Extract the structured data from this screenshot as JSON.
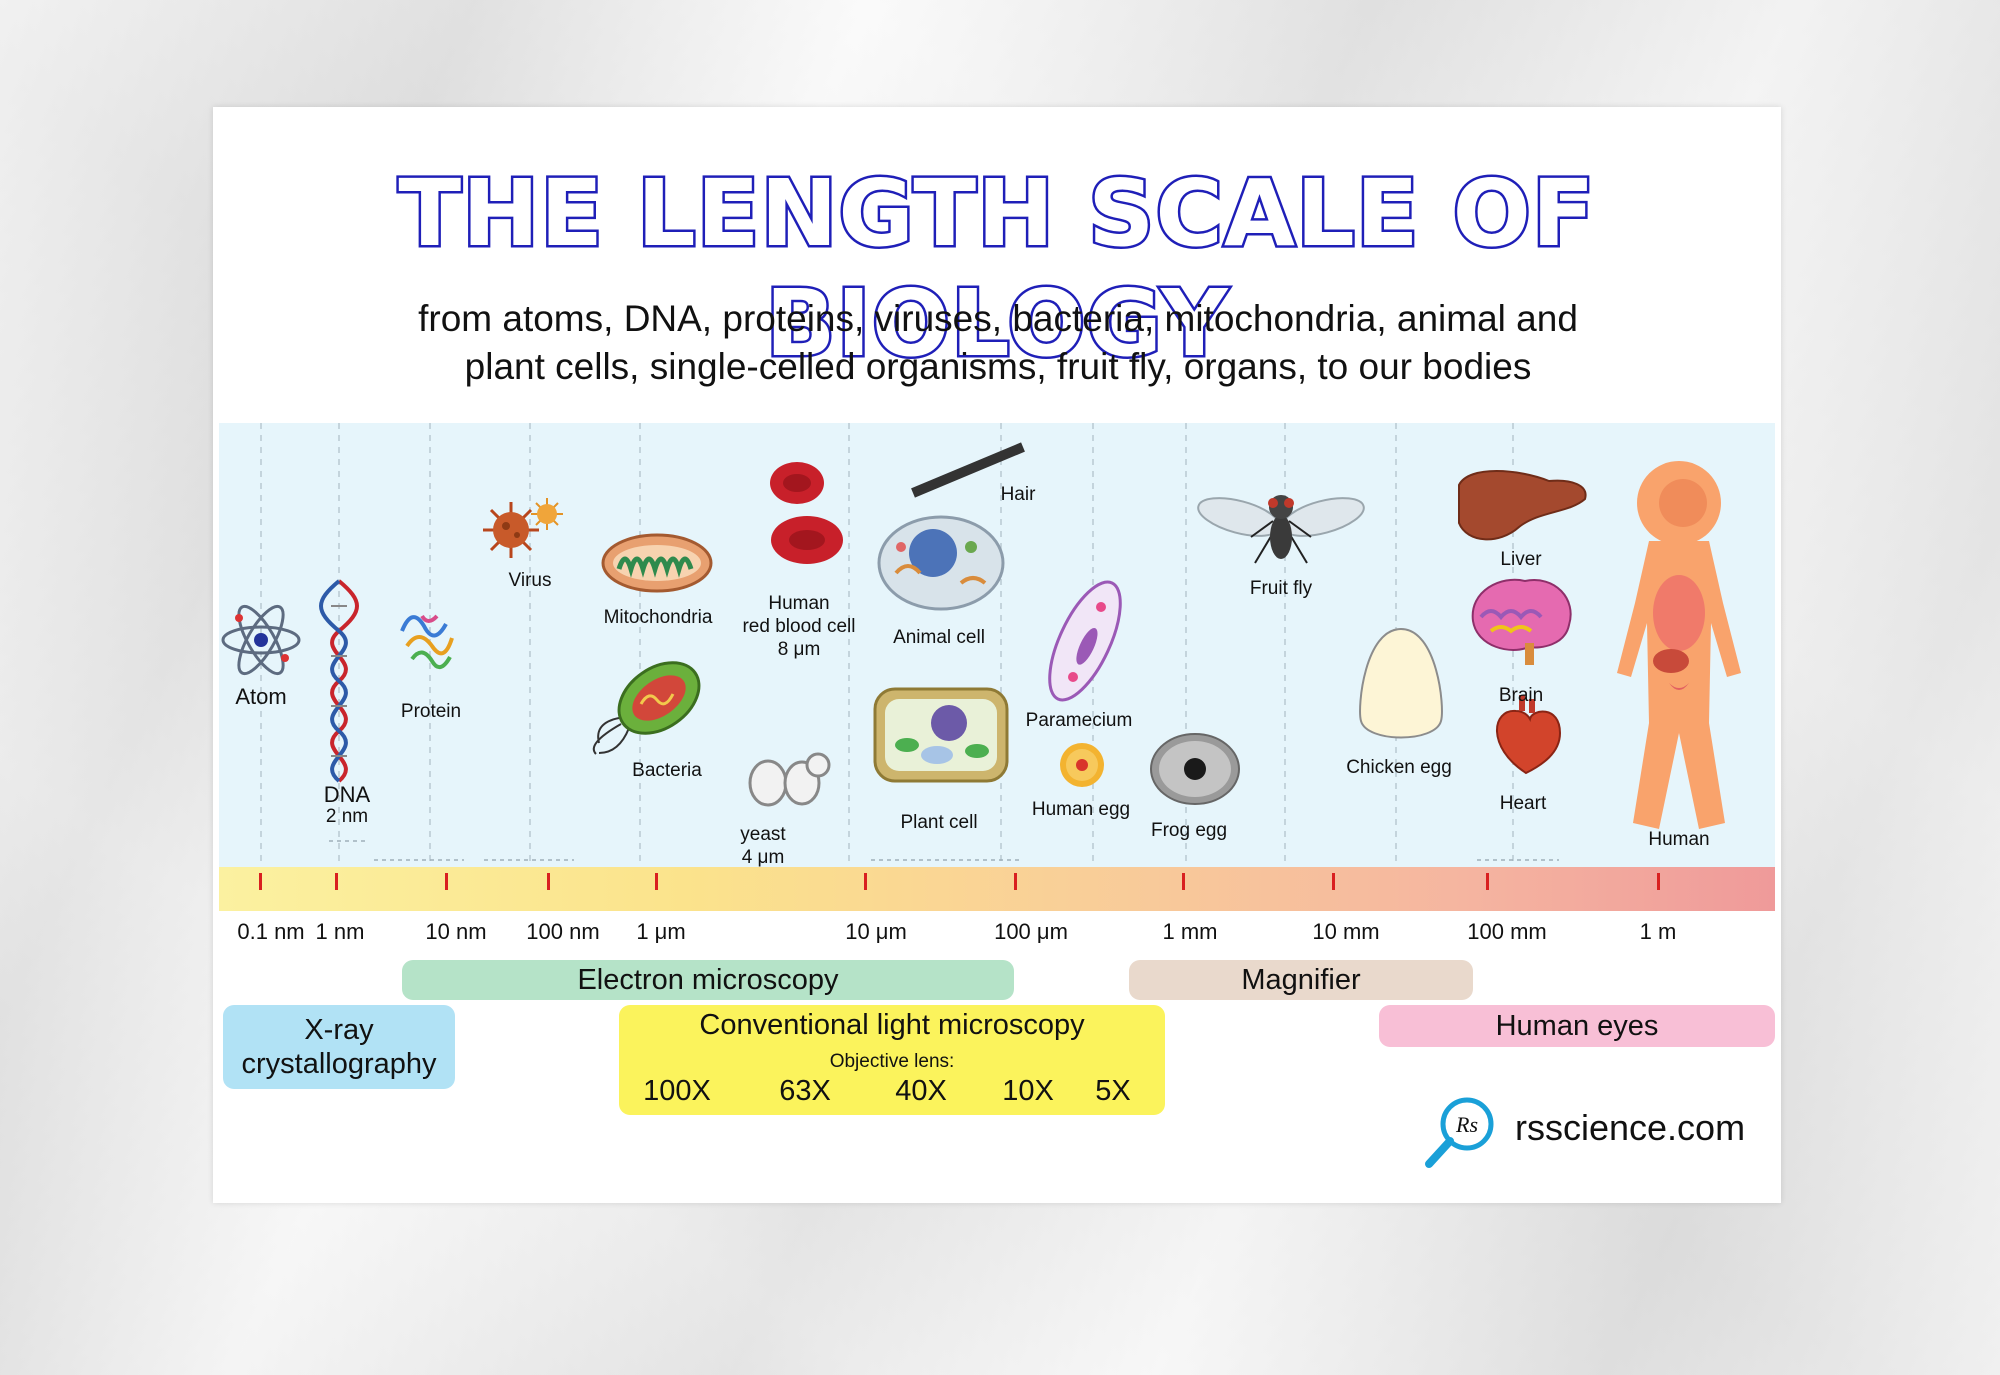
{
  "title": "THE LENGTH SCALE OF BIOLOGY",
  "subtitle_line1": "from atoms, DNA, proteins, viruses, bacteria, mitochondria, animal and",
  "subtitle_line2": "plant cells, single-celled organisms, fruit fly, organs, to our bodies",
  "organisms": {
    "atom": "Atom",
    "dna": "DNA",
    "dna_size": "2 nm",
    "protein": "Protein",
    "virus": "Virus",
    "mitochondria": "Mitochondria",
    "bacteria": "Bacteria",
    "rbc_line1": "Human",
    "rbc_line2": "red blood cell",
    "rbc_size": "8 μm",
    "yeast": "yeast",
    "yeast_size": "4 μm",
    "hair": "Hair",
    "animal_cell": "Animal cell",
    "plant_cell": "Plant cell",
    "paramecium": "Paramecium",
    "human_egg": "Human egg",
    "frog_egg": "Frog egg",
    "fruit_fly": "Fruit fly",
    "chicken_egg": "Chicken egg",
    "liver": "Liver",
    "brain": "Brain",
    "heart": "Heart",
    "human": "Human"
  },
  "scale_ticks": [
    "0.1 nm",
    "1 nm",
    "10 nm",
    "100 nm",
    "1 μm",
    "10 μm",
    "100 μm",
    "1 mm",
    "10 mm",
    "100 mm",
    "1 m"
  ],
  "methods": {
    "electron_microscopy": "Electron microscopy",
    "magnifier": "Magnifier",
    "xray_line1": "X-ray",
    "xray_line2": "crystallography",
    "light_microscopy": "Conventional light microscopy",
    "objective_label": "Objective lens:",
    "lenses": [
      "100X",
      "63X",
      "40X",
      "10X",
      "5X"
    ],
    "human_eyes": "Human eyes"
  },
  "brand": "rsscience.com",
  "brand_icon_text": "Rs",
  "colors": {
    "title_blue": "#1f1fb8",
    "panel_bg": "#e6f5fb",
    "tick_red": "#d92020",
    "electron_green": "#b5e3c8",
    "magnifier_tan": "#e9d9cc",
    "xray_blue": "#b1e2f5",
    "light_yellow": "#fbf35c",
    "eyes_pink": "#f8bfd6"
  }
}
